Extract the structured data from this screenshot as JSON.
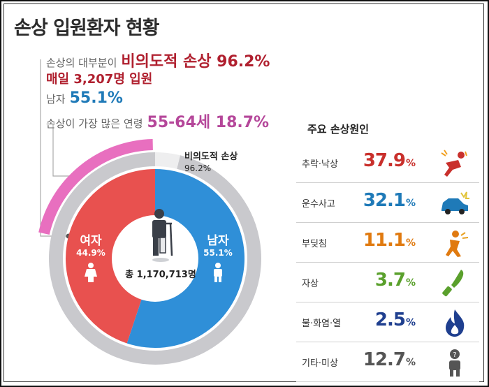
{
  "title": "손상 입원환자 현황",
  "summary": {
    "row1_label": "손상의 대부분이",
    "row1_value": "비의도적 손상 96.2%",
    "row2_value": "매일 3,207명 입원",
    "row3_label": "남자",
    "row3_value": "55.1%",
    "row4_label": "손상이 가장 많은 연령",
    "row4_value": "55-64세 18.7%"
  },
  "colors": {
    "female": "#e8514f",
    "male": "#2f8fd8",
    "intentional_arc": "#e86fbf",
    "ring": "#c9c9cd",
    "title": "#2b2b2b"
  },
  "chart_data": [
    {
      "type": "pie",
      "title": "",
      "total_label": "총 1,170,713명",
      "slices": [
        {
          "name": "여자",
          "value": 44.9,
          "label": "44.9%"
        },
        {
          "name": "남자",
          "value": 55.1,
          "label": "55.1%"
        }
      ],
      "outer_ring": [
        {
          "name": "비의도적 손상",
          "value": 96.2,
          "label": "96.2%"
        }
      ]
    },
    {
      "type": "table",
      "title": "주요 손상원인",
      "rows": [
        {
          "cause": "추락·낙상",
          "value": 37.9,
          "value_text": "37.9",
          "unit": "%",
          "color": "#c9302c",
          "icon": "falling-person-icon"
        },
        {
          "cause": "운수사고",
          "value": 32.1,
          "value_text": "32.1",
          "unit": "%",
          "color": "#1f7ab8",
          "icon": "car-crash-icon"
        },
        {
          "cause": "부딪침",
          "value": 11.1,
          "value_text": "11.1",
          "unit": "%",
          "color": "#e07a10",
          "icon": "collision-person-icon"
        },
        {
          "cause": "자상",
          "value": 3.7,
          "value_text": "3.7",
          "unit": "%",
          "color": "#5aa02c",
          "icon": "knife-icon"
        },
        {
          "cause": "불·화염·열",
          "value": 2.5,
          "value_text": "2.5",
          "unit": "%",
          "color": "#1f3f8f",
          "icon": "flame-icon"
        },
        {
          "cause": "기타·미상",
          "value": 12.7,
          "value_text": "12.7",
          "unit": "%",
          "color": "#555555",
          "icon": "unknown-person-icon"
        }
      ]
    }
  ]
}
